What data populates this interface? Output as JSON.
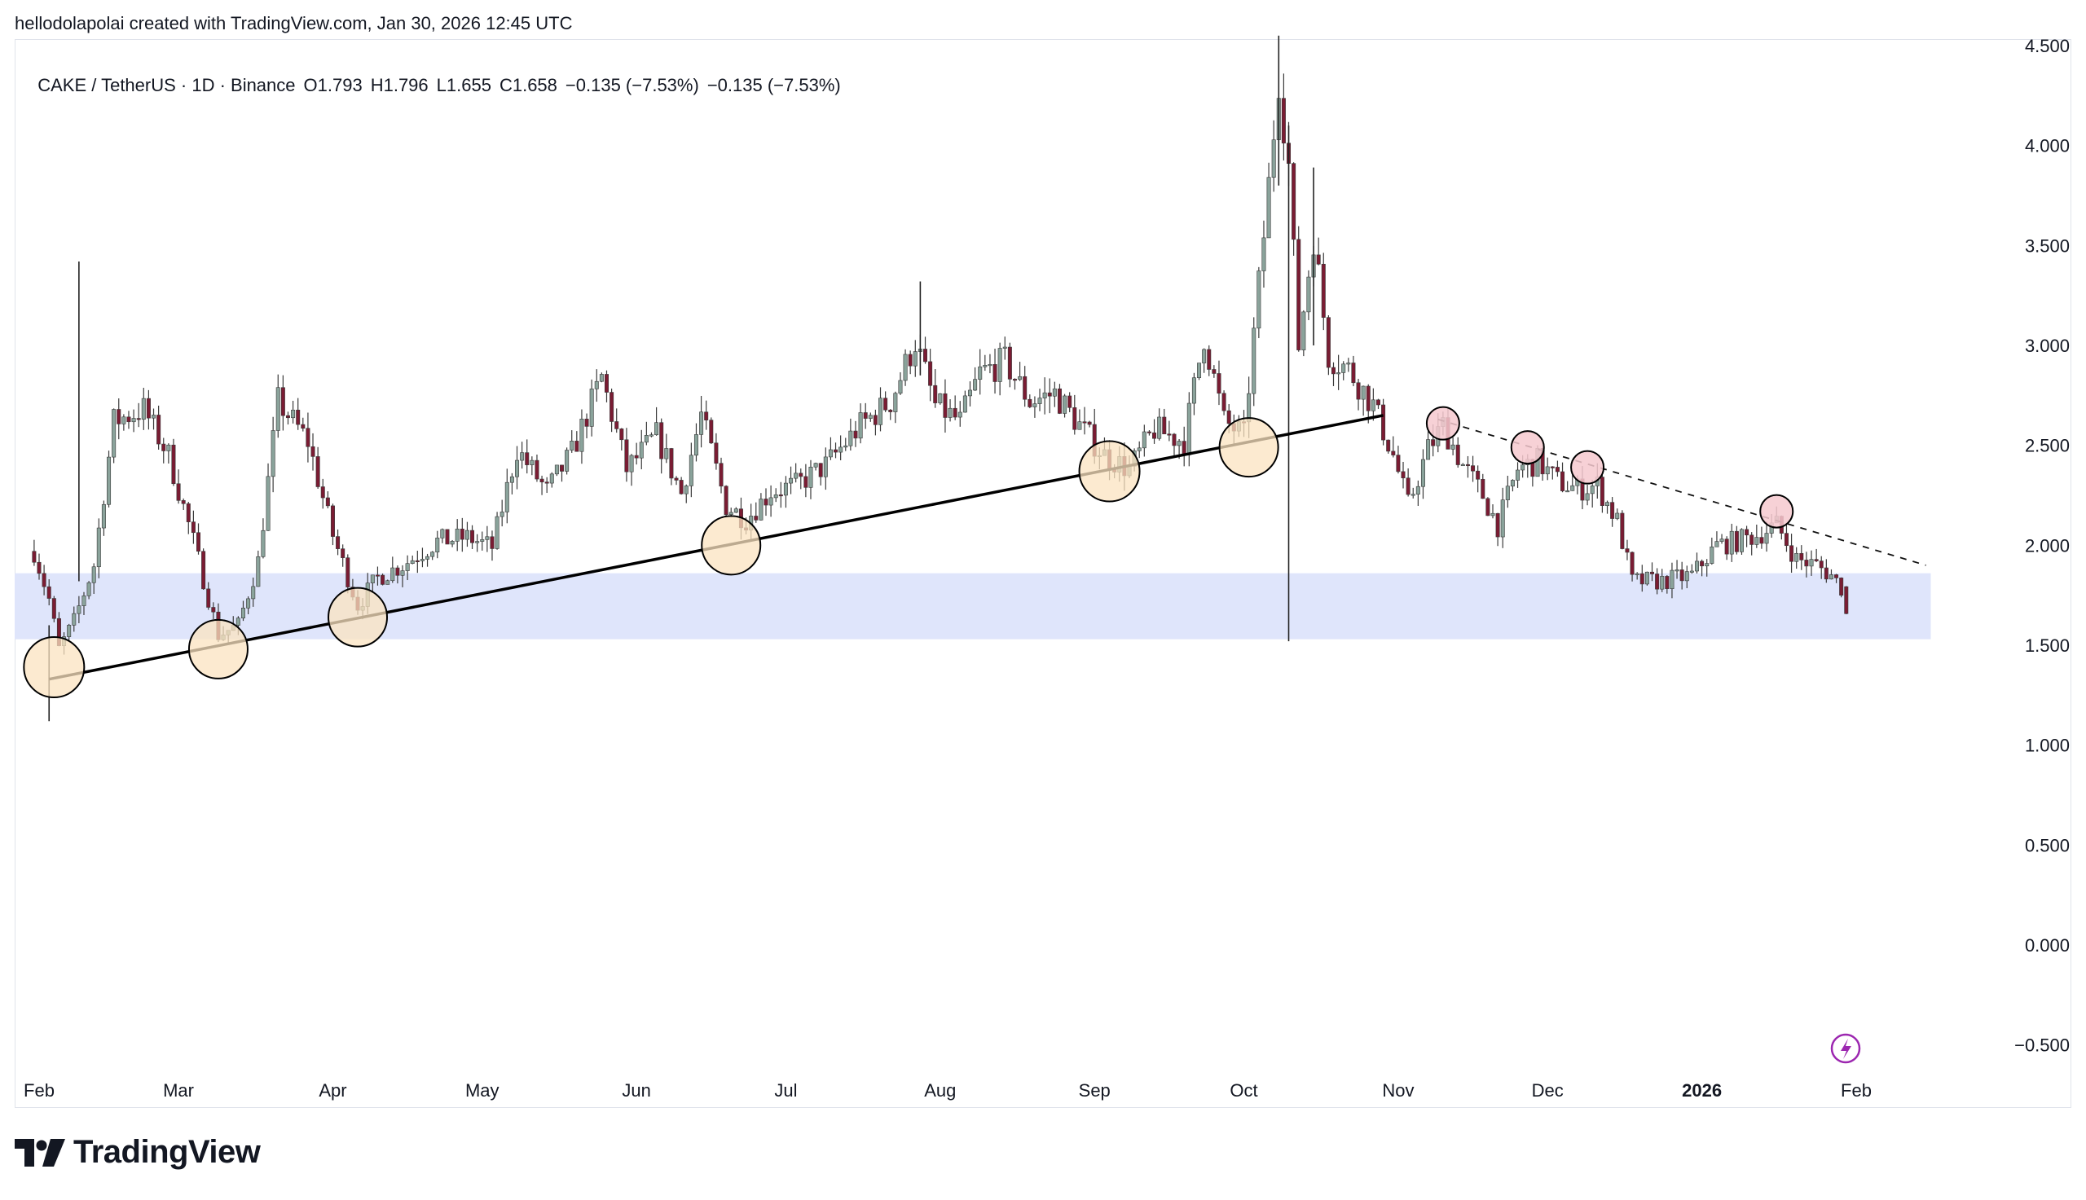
{
  "attribution": "hellodolapolai created with TradingView.com, Jan 30, 2026 12:45 UTC",
  "legend": {
    "symbol": "CAKE / TetherUS · 1D · Binance",
    "open": "O1.793",
    "high": "H1.796",
    "low": "L1.655",
    "close": "C1.658",
    "change": "−0.135 (−7.53%)",
    "change2": "−0.135 (−7.53%)"
  },
  "brand": {
    "name": "TradingView",
    "logo_icon": "tradingview-logo-icon"
  },
  "colors": {
    "up": "#8aa39b",
    "down": "#7a1c33",
    "zone": "#dfe5fb",
    "support_marker": "#fbe3c0",
    "resistance_marker": "#f6c9cf",
    "alert_icon": "#9c27b0"
  },
  "chart_data": {
    "type": "candlestick",
    "symbol": "CAKE / TetherUS",
    "interval": "1D",
    "exchange": "Binance",
    "ylim": [
      -0.6,
      4.55
    ],
    "y_ticks": [
      "4.500",
      "4.000",
      "3.500",
      "3.000",
      "2.500",
      "2.000",
      "1.500",
      "1.000",
      "0.500",
      "0.000",
      "−0.500"
    ],
    "x_ticks": [
      "Feb",
      "Mar",
      "Apr",
      "May",
      "Jun",
      "Jul",
      "Aug",
      "Sep",
      "Oct",
      "Nov",
      "Dec",
      "2026",
      "Feb"
    ],
    "x_range": [
      "2025-01-31",
      "2026-02-20"
    ],
    "support_zone": [
      1.53,
      1.86
    ],
    "support_trendline": [
      [
        "2025-02-03",
        1.33
      ],
      [
        "2025-10-29",
        2.65
      ]
    ],
    "resistance_trendline": [
      [
        "2025-11-09",
        2.63
      ],
      [
        "2026-02-15",
        1.9
      ]
    ],
    "support_touches": [
      [
        "2025-02-04",
        1.39
      ],
      [
        "2025-03-09",
        1.48
      ],
      [
        "2025-04-06",
        1.64
      ],
      [
        "2025-06-20",
        2.0
      ],
      [
        "2025-09-04",
        2.37
      ],
      [
        "2025-10-02",
        2.49
      ]
    ],
    "resistance_touches": [
      [
        "2025-11-10",
        2.61
      ],
      [
        "2025-11-27",
        2.49
      ],
      [
        "2025-12-09",
        2.39
      ],
      [
        "2026-01-16",
        2.17
      ]
    ],
    "price_path": [
      [
        "2025-01-31",
        1.97
      ],
      [
        "2025-02-03",
        1.73
      ],
      [
        "2025-02-05",
        1.48
      ],
      [
        "2025-02-08",
        1.62
      ],
      [
        "2025-02-12",
        1.9
      ],
      [
        "2025-02-16",
        2.62
      ],
      [
        "2025-02-22",
        2.68
      ],
      [
        "2025-02-27",
        2.45
      ],
      [
        "2025-03-04",
        2.02
      ],
      [
        "2025-03-09",
        1.55
      ],
      [
        "2025-03-13",
        1.6
      ],
      [
        "2025-03-17",
        1.92
      ],
      [
        "2025-03-21",
        2.72
      ],
      [
        "2025-03-27",
        2.52
      ],
      [
        "2025-04-01",
        2.05
      ],
      [
        "2025-04-06",
        1.7
      ],
      [
        "2025-04-10",
        1.84
      ],
      [
        "2025-04-15",
        1.9
      ],
      [
        "2025-04-22",
        2.02
      ],
      [
        "2025-04-28",
        2.04
      ],
      [
        "2025-05-03",
        1.99
      ],
      [
        "2025-05-08",
        2.48
      ],
      [
        "2025-05-14",
        2.27
      ],
      [
        "2025-05-19",
        2.46
      ],
      [
        "2025-05-25",
        2.84
      ],
      [
        "2025-05-30",
        2.38
      ],
      [
        "2025-06-05",
        2.55
      ],
      [
        "2025-06-10",
        2.26
      ],
      [
        "2025-06-14",
        2.65
      ],
      [
        "2025-06-19",
        2.2
      ],
      [
        "2025-06-23",
        2.13
      ],
      [
        "2025-06-28",
        2.27
      ],
      [
        "2025-07-03",
        2.3
      ],
      [
        "2025-07-09",
        2.4
      ],
      [
        "2025-07-16",
        2.6
      ],
      [
        "2025-07-22",
        2.72
      ],
      [
        "2025-07-27",
        3.02
      ],
      [
        "2025-07-31",
        2.7
      ],
      [
        "2025-08-05",
        2.62
      ],
      [
        "2025-08-09",
        2.86
      ],
      [
        "2025-08-14",
        2.92
      ],
      [
        "2025-08-19",
        2.72
      ],
      [
        "2025-08-24",
        2.76
      ],
      [
        "2025-08-29",
        2.6
      ],
      [
        "2025-09-03",
        2.45
      ],
      [
        "2025-09-08",
        2.38
      ],
      [
        "2025-09-13",
        2.58
      ],
      [
        "2025-09-19",
        2.52
      ],
      [
        "2025-09-23",
        3.05
      ],
      [
        "2025-09-27",
        2.62
      ],
      [
        "2025-10-01",
        2.55
      ],
      [
        "2025-10-04",
        3.3
      ],
      [
        "2025-10-06",
        3.8
      ],
      [
        "2025-10-08",
        4.35
      ],
      [
        "2025-10-10",
        3.9
      ],
      [
        "2025-10-12",
        3.0
      ],
      [
        "2025-10-15",
        3.55
      ],
      [
        "2025-10-18",
        2.95
      ],
      [
        "2025-10-22",
        2.88
      ],
      [
        "2025-10-27",
        2.7
      ],
      [
        "2025-10-31",
        2.45
      ],
      [
        "2025-11-03",
        2.2
      ],
      [
        "2025-11-07",
        2.48
      ],
      [
        "2025-11-10",
        2.6
      ],
      [
        "2025-11-14",
        2.4
      ],
      [
        "2025-11-18",
        2.25
      ],
      [
        "2025-11-21",
        2.1
      ],
      [
        "2025-11-25",
        2.38
      ],
      [
        "2025-11-29",
        2.42
      ],
      [
        "2025-12-03",
        2.32
      ],
      [
        "2025-12-07",
        2.28
      ],
      [
        "2025-12-11",
        2.3
      ],
      [
        "2025-12-15",
        2.12
      ],
      [
        "2025-12-18",
        1.82
      ],
      [
        "2025-12-24",
        1.82
      ],
      [
        "2025-12-30",
        1.85
      ],
      [
        "2026-01-04",
        2.0
      ],
      [
        "2026-01-08",
        2.02
      ],
      [
        "2026-01-12",
        2.05
      ],
      [
        "2026-01-16",
        2.1
      ],
      [
        "2026-01-20",
        1.93
      ],
      [
        "2026-01-24",
        1.9
      ],
      [
        "2026-01-27",
        1.85
      ],
      [
        "2026-01-29",
        1.79
      ],
      [
        "2026-01-30",
        1.66
      ]
    ],
    "spike_wicks": [
      [
        "2025-02-09",
        1.82,
        3.42
      ],
      [
        "2025-07-28",
        2.85,
        3.32
      ],
      [
        "2025-10-08",
        3.8,
        4.55
      ],
      [
        "2025-10-10",
        1.52,
        4.1
      ],
      [
        "2025-10-15",
        3.0,
        3.89
      ],
      [
        "2025-02-03",
        1.12,
        1.6
      ]
    ],
    "last_candle": {
      "open": 1.793,
      "high": 1.796,
      "low": 1.655,
      "close": 1.658
    }
  }
}
